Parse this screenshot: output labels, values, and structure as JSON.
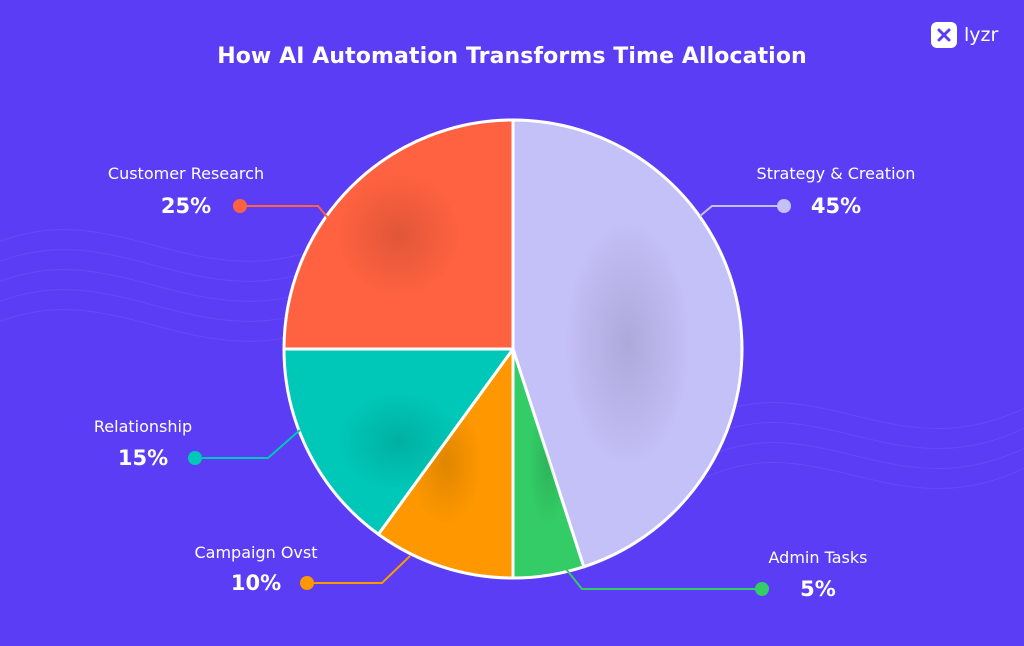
{
  "brand": {
    "name": "lyzr",
    "icon": "lyzr-logo-icon"
  },
  "colors": {
    "background": "#5b3df5",
    "slice_border": "#ffffff"
  },
  "chart_data": {
    "type": "pie",
    "title": "How AI Automation Transforms Time Allocation",
    "start_angle_deg": 0,
    "direction": "clockwise",
    "legend": "none",
    "slices": [
      {
        "label": "Strategy & Creation",
        "value": 45,
        "value_label": "45%",
        "color": "#c4c0f8"
      },
      {
        "label": "Admin Tasks",
        "value": 5,
        "value_label": "5%",
        "color": "#33cc66"
      },
      {
        "label": "Campaign Ovst",
        "value": 10,
        "value_label": "10%",
        "color": "#ff9800"
      },
      {
        "label": "Relationship",
        "value": 15,
        "value_label": "15%",
        "color": "#00c8b8"
      },
      {
        "label": "Customer Research",
        "value": 25,
        "value_label": "25%",
        "color": "#ff6240"
      }
    ]
  }
}
